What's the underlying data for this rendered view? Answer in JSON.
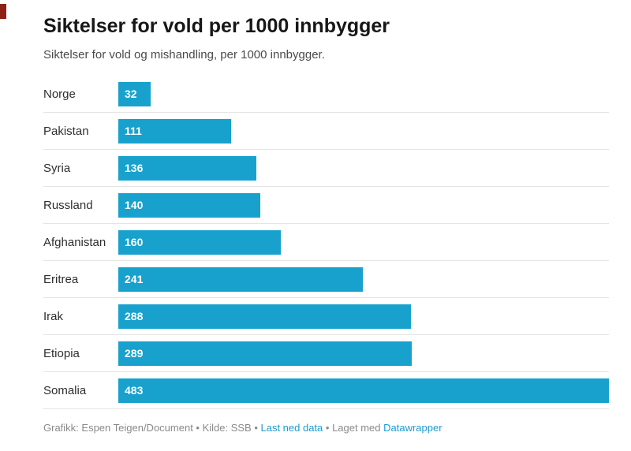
{
  "header": {
    "title": "Siktelser for vold per 1000 innbygger",
    "subtitle": "Siktelser for vold og mishandling, per 1000 innbygger."
  },
  "chart_data": {
    "type": "bar",
    "orientation": "horizontal",
    "title": "Siktelser for vold per 1000 innbygger",
    "subtitle": "Siktelser for vold og mishandling, per 1000 innbygger.",
    "categories": [
      "Norge",
      "Pakistan",
      "Syria",
      "Russland",
      "Afghanistan",
      "Eritrea",
      "Irak",
      "Etiopia",
      "Somalia"
    ],
    "values": [
      32,
      111,
      136,
      140,
      160,
      241,
      288,
      289,
      483
    ],
    "xlabel": "",
    "ylabel": "",
    "xlim": [
      0,
      483
    ],
    "grid": "row-lines",
    "legend": "none",
    "bar_color": "#18a1cd",
    "value_label_color": "#ffffff",
    "row_line_color": "#e4e4e4"
  },
  "footer": {
    "credit": "Grafikk: Espen Teigen/Document • Kilde: SSB • ",
    "download_link": "Last ned data",
    "made_with": " • Laget med ",
    "made_with_link": "Datawrapper",
    "link_color": "#1d9bd1"
  }
}
